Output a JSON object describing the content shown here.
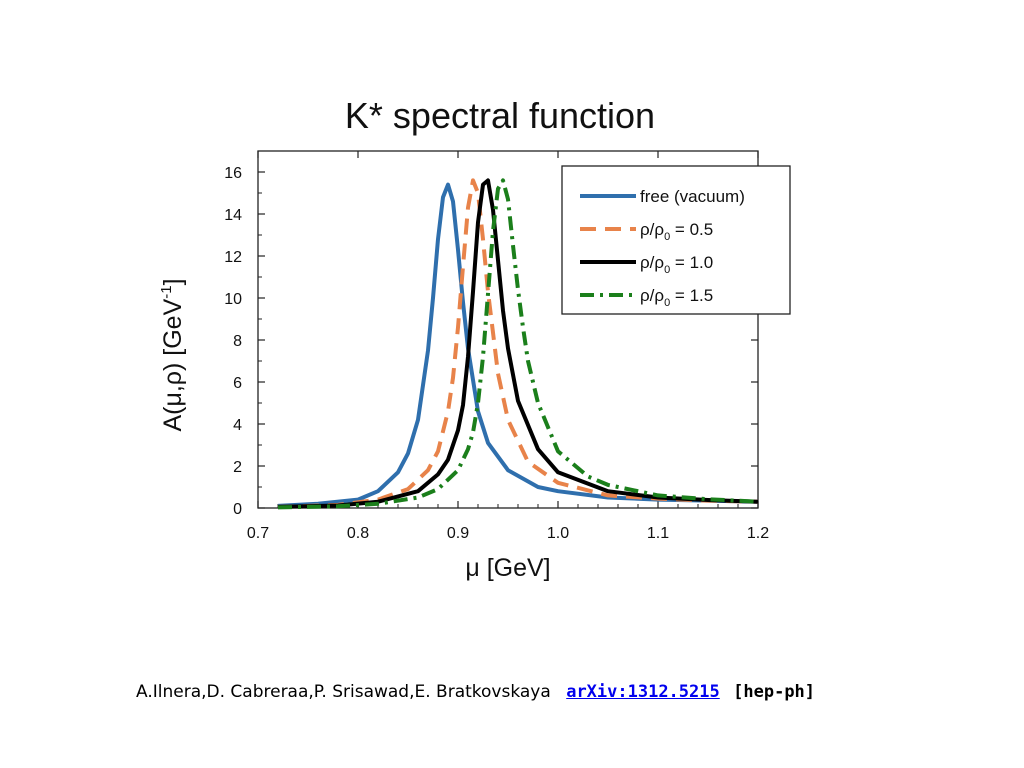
{
  "chart_data": {
    "type": "line",
    "title": "K* spectral function",
    "xlabel": "μ [GeV]",
    "ylabel": "A(μ,ρ) [GeV-1]",
    "xlim": [
      0.7,
      1.2
    ],
    "ylim": [
      0,
      17
    ],
    "xticks": [
      "0.7",
      "0.8",
      "0.9",
      "1.0",
      "1.1",
      "1.2"
    ],
    "yticks": [
      "0",
      "2",
      "4",
      "6",
      "8",
      "10",
      "12",
      "14",
      "16"
    ],
    "grid": false,
    "legend_position": "top-right",
    "series": [
      {
        "name": "free (vacuum)",
        "color": "#2f6fad",
        "style": "solid",
        "x": [
          0.72,
          0.76,
          0.8,
          0.82,
          0.84,
          0.85,
          0.86,
          0.87,
          0.875,
          0.88,
          0.885,
          0.89,
          0.895,
          0.9,
          0.905,
          0.91,
          0.92,
          0.93,
          0.95,
          0.98,
          1.0,
          1.05,
          1.1,
          1.15,
          1.2
        ],
        "y": [
          0.1,
          0.2,
          0.4,
          0.8,
          1.7,
          2.6,
          4.2,
          7.5,
          10.0,
          12.8,
          14.8,
          15.4,
          14.6,
          12.3,
          9.8,
          7.6,
          4.6,
          3.1,
          1.8,
          1.0,
          0.8,
          0.5,
          0.4,
          0.35,
          0.3
        ]
      },
      {
        "name": "ρ/ρ0 = 0.5",
        "color": "#e8834a",
        "style": "dashed",
        "x": [
          0.72,
          0.78,
          0.82,
          0.85,
          0.87,
          0.88,
          0.89,
          0.895,
          0.9,
          0.905,
          0.91,
          0.915,
          0.92,
          0.925,
          0.93,
          0.94,
          0.95,
          0.97,
          1.0,
          1.05,
          1.1,
          1.15,
          1.2
        ],
        "y": [
          0.05,
          0.15,
          0.4,
          0.9,
          1.8,
          2.7,
          4.6,
          6.2,
          8.6,
          11.5,
          14.3,
          15.6,
          15.0,
          12.8,
          10.3,
          6.4,
          4.2,
          2.2,
          1.2,
          0.6,
          0.45,
          0.35,
          0.3
        ]
      },
      {
        "name": "ρ/ρ0 = 1.0",
        "color": "#000000",
        "style": "solid",
        "x": [
          0.72,
          0.78,
          0.82,
          0.86,
          0.88,
          0.89,
          0.9,
          0.905,
          0.91,
          0.915,
          0.92,
          0.925,
          0.93,
          0.935,
          0.94,
          0.945,
          0.95,
          0.96,
          0.98,
          1.0,
          1.05,
          1.1,
          1.15,
          1.2
        ],
        "y": [
          0.05,
          0.12,
          0.3,
          0.8,
          1.6,
          2.3,
          3.7,
          4.9,
          7.2,
          10.3,
          13.6,
          15.4,
          15.6,
          14.2,
          11.8,
          9.4,
          7.6,
          5.1,
          2.8,
          1.7,
          0.8,
          0.5,
          0.38,
          0.3
        ]
      },
      {
        "name": "ρ/ρ0 = 1.5",
        "color": "#1b7f1b",
        "style": "dashdot",
        "x": [
          0.72,
          0.78,
          0.82,
          0.86,
          0.88,
          0.9,
          0.91,
          0.915,
          0.92,
          0.925,
          0.93,
          0.935,
          0.94,
          0.945,
          0.95,
          0.955,
          0.96,
          0.965,
          0.97,
          0.98,
          1.0,
          1.03,
          1.05,
          1.1,
          1.15,
          1.2
        ],
        "y": [
          0.03,
          0.08,
          0.2,
          0.5,
          0.9,
          1.8,
          2.8,
          3.6,
          5.0,
          7.2,
          10.2,
          13.2,
          15.2,
          15.6,
          14.7,
          12.5,
          10.4,
          8.6,
          7.0,
          5.0,
          2.7,
          1.5,
          1.1,
          0.6,
          0.42,
          0.3
        ]
      }
    ]
  },
  "citation": {
    "authors": "A.Ilnera,D. Cabreraa,P. Srisawad,E. Bratkovskaya",
    "link_text": "arXiv:1312.5215",
    "tag": "[hep-ph]"
  }
}
